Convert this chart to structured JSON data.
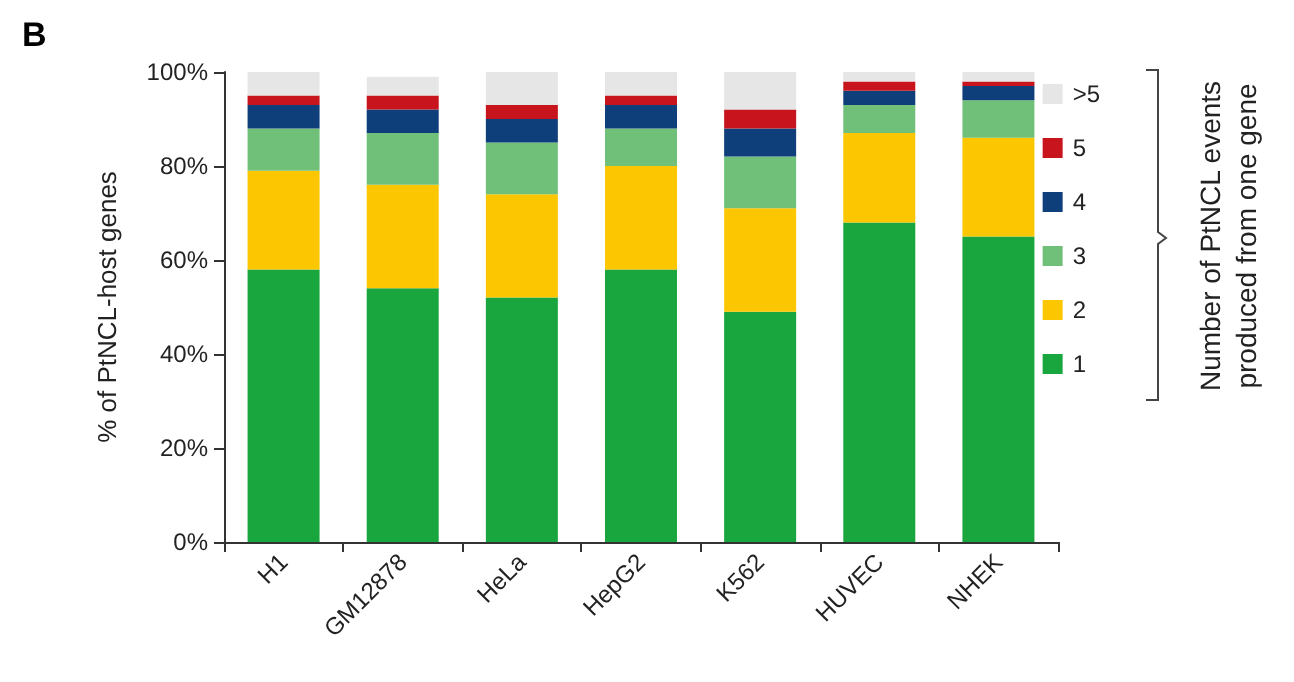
{
  "chart_data": {
    "type": "bar",
    "title": "B",
    "ylabel": "% of PtNCL-host genes",
    "legend_title": "Number of PtNCL events\nproduced from one gene",
    "stacked": true,
    "legend": "right",
    "grid": false,
    "categories": [
      "H1",
      "GM12878",
      "HeLa",
      "HepG2",
      "K562",
      "HUVEC",
      "NHEK"
    ],
    "ylim": [
      0,
      100
    ],
    "yticks": [
      {
        "value": 0,
        "label": "0%"
      },
      {
        "value": 20,
        "label": "20%"
      },
      {
        "value": 40,
        "label": "40%"
      },
      {
        "value": 60,
        "label": "60%"
      },
      {
        "value": 80,
        "label": "80%"
      },
      {
        "value": 100,
        "label": "100%"
      }
    ],
    "series": [
      {
        "name": "1",
        "color": "#1aa63e",
        "values": [
          58,
          54,
          52,
          58,
          49,
          68,
          65
        ]
      },
      {
        "name": "2",
        "color": "#fcc600",
        "values": [
          21,
          22,
          22,
          22,
          22,
          19,
          21
        ]
      },
      {
        "name": "3",
        "color": "#70c07a",
        "values": [
          9,
          11,
          11,
          8,
          11,
          6,
          8
        ]
      },
      {
        "name": "4",
        "color": "#0f3f7a",
        "values": [
          5,
          5,
          5,
          5,
          6,
          3,
          3
        ]
      },
      {
        "name": "5",
        "color": "#c8141c",
        "values": [
          2,
          3,
          3,
          2,
          4,
          2,
          1
        ]
      },
      {
        "name": ">5",
        "color": "#e6e6e6",
        "values": [
          5,
          4,
          7,
          5,
          8,
          2,
          2
        ]
      }
    ]
  }
}
